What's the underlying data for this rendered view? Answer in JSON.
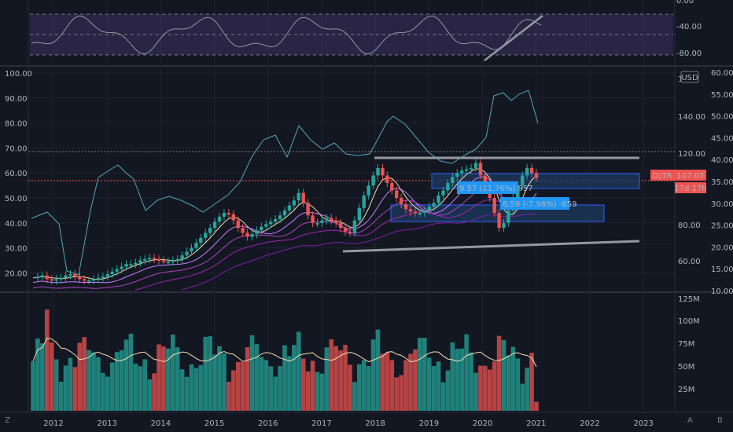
{
  "colors": {
    "background": "#131722",
    "grid": "#1e222d",
    "up": "#26a69a",
    "down": "#ef5350",
    "rsi_band": "#7e57c2",
    "price_line": "#ef5350",
    "label_bg": "#ef5350",
    "box_fill": "#1e3a5f",
    "box_border": "#2962ff",
    "trend_line": "#9598a1",
    "overlay_line": "#4fa9b5",
    "vol_ma": "#f5deb3"
  },
  "corner_labels": {
    "bottom_left": "Z",
    "bottom_right_a": "A",
    "bottom_right_b": "B"
  },
  "rsi_panel": {
    "ticks": [
      "0.00",
      "-40.00",
      "-80.00"
    ]
  },
  "price_panel": {
    "left_ticks": [
      "100.00",
      "90.00",
      "80.00",
      "70.00",
      "60.00",
      "50.00",
      "40.00",
      "30.00",
      "20.00"
    ],
    "mid_ticks": [
      "140.00",
      "120.00",
      "80.00",
      "60.00"
    ],
    "mid_top_tick": "1",
    "right_ticks": [
      "60.00",
      "55.00",
      "50.00",
      "45.00",
      "40.00",
      "35.00",
      "30.00",
      "25.00",
      "20.00",
      "15.00",
      "10.00"
    ],
    "currency": "USD",
    "symbol_label": "DLTR",
    "price_label": "107.07",
    "countdown_label": "17d 17h",
    "box_labels": [
      "9.57 (11.76%) 957",
      "8.59 (-7.96%) -859"
    ]
  },
  "volume_panel": {
    "ticks": [
      "125M",
      "100M",
      "75M",
      "50M",
      "25M"
    ]
  },
  "chart_data": {
    "type": "candlestick",
    "timeframe": "monthly",
    "symbol": "DLTR",
    "x_axis_labels": [
      "2012",
      "2013",
      "2014",
      "2015",
      "2016",
      "2017",
      "2018",
      "2019",
      "2020",
      "2021",
      "2022",
      "2023"
    ],
    "last_price": 107.07,
    "volume_ma_approx_M": 50,
    "close_series_left_axis": [
      18,
      18.5,
      19,
      17.5,
      17,
      17.5,
      18,
      19,
      19.5,
      18.5,
      17.5,
      17,
      17,
      17.5,
      18,
      18.5,
      19.5,
      20.5,
      21.5,
      22.5,
      23.5,
      23.5,
      24,
      25,
      25.5,
      26,
      25.5,
      25,
      24.5,
      24.5,
      25,
      25.5,
      27,
      28.5,
      30,
      32,
      34,
      36,
      38,
      40.5,
      42.5,
      44,
      43.5,
      41,
      38,
      36,
      34.5,
      35.5,
      37,
      38.5,
      39.5,
      40.5,
      41.5,
      43,
      45,
      47,
      49,
      52,
      48,
      43,
      40,
      40,
      41,
      42,
      41,
      40,
      38,
      36.5,
      36,
      41,
      46,
      51,
      55,
      59,
      62,
      59,
      56,
      53,
      50,
      47.5,
      45.5,
      44.5,
      44,
      44,
      45,
      46.5,
      48,
      51,
      53,
      56,
      58.5,
      60,
      61,
      61.5,
      62,
      64,
      59,
      55,
      50,
      44,
      38,
      40,
      45,
      50,
      55,
      59,
      62,
      60,
      58
    ]
  }
}
